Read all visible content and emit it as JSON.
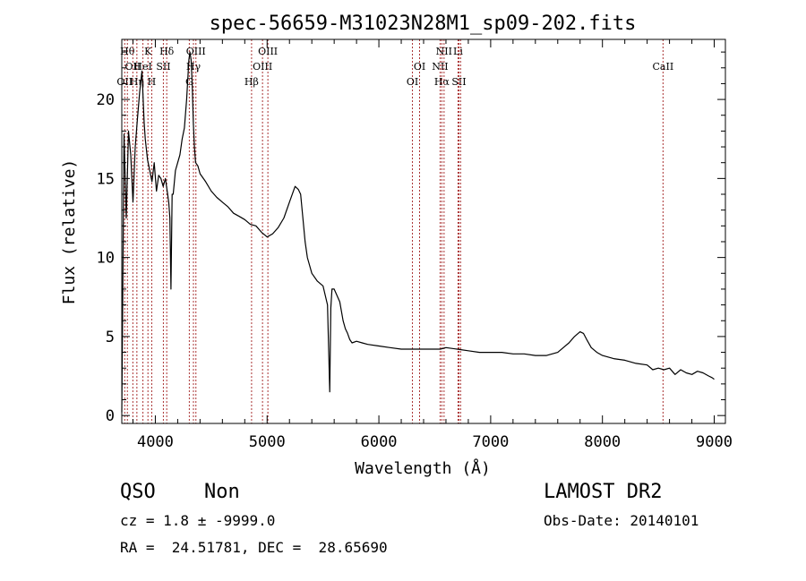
{
  "chart_data": {
    "type": "line",
    "title": "spec-56659-M31023N28M1_sp09-202.fits",
    "xlabel": "Wavelength (Å)",
    "ylabel": "Flux (relative)",
    "xlim": [
      3700,
      9100
    ],
    "ylim": [
      -0.5,
      23.8
    ],
    "xticks": [
      4000,
      5000,
      6000,
      7000,
      8000,
      9000
    ],
    "yticks": [
      0,
      5,
      10,
      15,
      20
    ],
    "grid": false,
    "line_color": "#000000",
    "marker_color": "#aa3333",
    "series": [
      {
        "x": [
          3700,
          3720,
          3740,
          3760,
          3780,
          3800,
          3820,
          3840,
          3860,
          3880,
          3900,
          3910,
          3930,
          3950,
          3970,
          3990,
          4010,
          4030,
          4050,
          4070,
          4090,
          4110,
          4120,
          4130,
          4140,
          4150,
          4160,
          4180,
          4200,
          4220,
          4240,
          4260,
          4280,
          4300,
          4310,
          4320,
          4330,
          4340,
          4350,
          4360,
          4380,
          4400,
          4450,
          4500,
          4550,
          4600,
          4650,
          4700,
          4750,
          4800,
          4850,
          4900,
          4950,
          5000,
          5050,
          5100,
          5150,
          5200,
          5250,
          5280,
          5300,
          5320,
          5340,
          5360,
          5380,
          5400,
          5450,
          5500,
          5540,
          5560,
          5570,
          5580,
          5600,
          5650,
          5680,
          5700,
          5720,
          5740,
          5760,
          5800,
          5850,
          5900,
          6000,
          6100,
          6200,
          6300,
          6400,
          6500,
          6550,
          6600,
          6700,
          6800,
          6900,
          7000,
          7100,
          7200,
          7300,
          7400,
          7500,
          7600,
          7650,
          7700,
          7750,
          7800,
          7830,
          7860,
          7900,
          7950,
          8000,
          8100,
          8200,
          8300,
          8400,
          8450,
          8500,
          8550,
          8600,
          8650,
          8700,
          8750,
          8800,
          8850,
          8900,
          8950,
          8980,
          9000
        ],
        "values": [
          0.2,
          17.8,
          12.5,
          18.0,
          16.5,
          13.5,
          17.0,
          18.8,
          20.5,
          21.8,
          18.5,
          17.5,
          16.2,
          15.5,
          14.8,
          16.0,
          14.2,
          15.2,
          15.0,
          14.5,
          15.0,
          14.0,
          13.5,
          12.5,
          8.0,
          14.0,
          14.0,
          15.5,
          16.0,
          16.5,
          17.5,
          18.2,
          20.0,
          22.5,
          23.0,
          22.5,
          21.0,
          18.5,
          17.0,
          16.0,
          15.8,
          15.3,
          14.8,
          14.2,
          13.8,
          13.5,
          13.2,
          12.8,
          12.6,
          12.4,
          12.1,
          12.0,
          11.6,
          11.3,
          11.5,
          11.9,
          12.5,
          13.5,
          14.5,
          14.3,
          14.0,
          12.5,
          11.0,
          10.0,
          9.5,
          9.0,
          8.5,
          8.2,
          7.0,
          1.5,
          6.8,
          8.0,
          8.0,
          7.2,
          6.0,
          5.5,
          5.2,
          4.8,
          4.6,
          4.7,
          4.6,
          4.5,
          4.4,
          4.3,
          4.2,
          4.2,
          4.2,
          4.2,
          4.2,
          4.3,
          4.2,
          4.1,
          4.0,
          4.0,
          4.0,
          3.9,
          3.9,
          3.8,
          3.8,
          4.0,
          4.3,
          4.6,
          5.0,
          5.3,
          5.2,
          4.8,
          4.3,
          4.0,
          3.8,
          3.6,
          3.5,
          3.3,
          3.2,
          2.9,
          3.0,
          2.9,
          3.0,
          2.6,
          2.9,
          2.7,
          2.6,
          2.8,
          2.7,
          2.5,
          2.4,
          2.3
        ]
      }
    ],
    "line_markers": [
      {
        "x": 3726,
        "label": "OII",
        "row": 3
      },
      {
        "x": 3750,
        "label": "Hθ",
        "row": 1
      },
      {
        "x": 3799,
        "label": "OII",
        "row": 2
      },
      {
        "x": 3835,
        "label": "Hη",
        "row": 3
      },
      {
        "x": 3889,
        "label": "HeI",
        "row": 2
      },
      {
        "x": 3934,
        "label": "K",
        "row": 1
      },
      {
        "x": 3968,
        "label": "H",
        "row": 3
      },
      {
        "x": 4072,
        "label": "SII",
        "row": 2
      },
      {
        "x": 4102,
        "label": "Hδ",
        "row": 1
      },
      {
        "x": 4304,
        "label": "G",
        "row": 3
      },
      {
        "x": 4341,
        "label": "Hγ",
        "row": 2
      },
      {
        "x": 4363,
        "label": "OIII",
        "row": 1
      },
      {
        "x": 4861,
        "label": "Hβ",
        "row": 3
      },
      {
        "x": 4959,
        "label": "OIII",
        "row": 2
      },
      {
        "x": 5007,
        "label": "OIII",
        "row": 1
      },
      {
        "x": 6300,
        "label": "OI",
        "row": 3
      },
      {
        "x": 6364,
        "label": "OI",
        "row": 2
      },
      {
        "x": 6548,
        "label": "NII",
        "row": 2
      },
      {
        "x": 6563,
        "label": "Hα",
        "row": 3
      },
      {
        "x": 6583,
        "label": "NII",
        "row": 1
      },
      {
        "x": 6708,
        "label": "Li",
        "row": 1
      },
      {
        "x": 6716,
        "label": "SII",
        "row": 3
      },
      {
        "x": 6731,
        "label": "",
        "row": 3
      },
      {
        "x": 8542,
        "label": "CaII",
        "row": 2
      }
    ]
  },
  "info": {
    "object_class": "QSO",
    "subclass": "Non",
    "redshift_text": "cz = 1.8 ± -9999.0",
    "coords_text": "RA =  24.51781, DEC =  28.65690",
    "survey": "LAMOST DR2",
    "obs_date_text": "Obs-Date: 20140101"
  }
}
